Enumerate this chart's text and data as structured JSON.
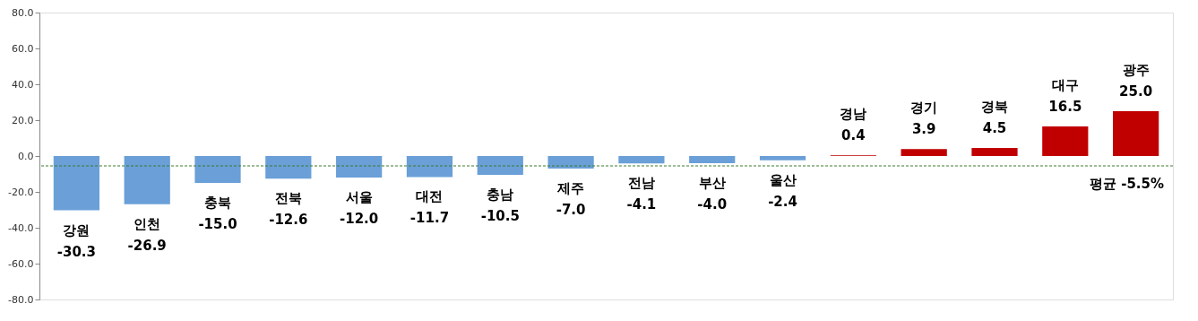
{
  "chart_data": {
    "type": "bar",
    "categories": [
      "강원",
      "인천",
      "충북",
      "전북",
      "서울",
      "대전",
      "충남",
      "제주",
      "전남",
      "부산",
      "울산",
      "경남",
      "경기",
      "경북",
      "대구",
      "광주"
    ],
    "values": [
      -30.3,
      -26.9,
      -15.0,
      -12.6,
      -12.0,
      -11.7,
      -10.5,
      -7.0,
      -4.1,
      -4.0,
      -2.4,
      0.4,
      3.9,
      4.5,
      16.5,
      25.0
    ],
    "colors": [
      "#6a9fd8",
      "#6a9fd8",
      "#6a9fd8",
      "#6a9fd8",
      "#6a9fd8",
      "#6a9fd8",
      "#6a9fd8",
      "#6a9fd8",
      "#6a9fd8",
      "#6a9fd8",
      "#6a9fd8",
      "#c00000",
      "#c00000",
      "#c00000",
      "#c00000",
      "#c00000"
    ],
    "ylim": [
      -80,
      80
    ],
    "yticks": [
      {
        "value": -80,
        "label": "-80.0"
      },
      {
        "value": -60,
        "label": "-60.0"
      },
      {
        "value": -40,
        "label": "-40.0"
      },
      {
        "value": -20,
        "label": "-20.0"
      },
      {
        "value": 0,
        "label": "0.0"
      },
      {
        "value": 20,
        "label": "20.0"
      },
      {
        "value": 40,
        "label": "40.0"
      },
      {
        "value": 60,
        "label": "60.0"
      },
      {
        "value": 80,
        "label": "80.0"
      }
    ],
    "ref_lines": [
      {
        "axis": "y",
        "value": -5.5,
        "label": "평균 -5.5%",
        "color": "#3a7a2a",
        "line_style": "dashed"
      }
    ],
    "value_labels": [
      "-30.3",
      "-26.9",
      "-15.0",
      "-12.6",
      "-12.0",
      "-11.7",
      "-10.5",
      "-7.0",
      "-4.1",
      "-4.0",
      "-2.4",
      "0.4",
      "3.9",
      "4.5",
      "16.5",
      "25.0"
    ],
    "tick_labels": "y",
    "grid": false
  }
}
